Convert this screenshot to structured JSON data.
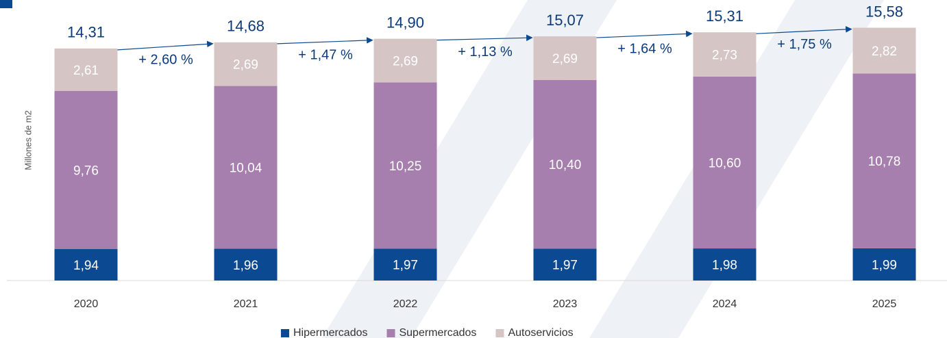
{
  "chart_data": {
    "type": "stacked_bar",
    "y_axis_label": "Millones de m2",
    "categories": [
      "2020",
      "2021",
      "2022",
      "2023",
      "2024",
      "2025"
    ],
    "series": [
      {
        "name": "Hipermercados",
        "color": "#0b4a92",
        "values": [
          1.94,
          1.96,
          1.97,
          1.97,
          1.98,
          1.99
        ],
        "value_labels": [
          "1,94",
          "1,96",
          "1,97",
          "1,97",
          "1,98",
          "1,99"
        ]
      },
      {
        "name": "Supermercados",
        "color": "#a77fae",
        "values": [
          9.76,
          10.04,
          10.25,
          10.4,
          10.6,
          10.78
        ],
        "value_labels": [
          "9,76",
          "10,04",
          "10,25",
          "10,40",
          "10,60",
          "10,78"
        ]
      },
      {
        "name": "Autoservicios",
        "color": "#d5c6c5",
        "values": [
          2.61,
          2.69,
          2.69,
          2.69,
          2.73,
          2.82
        ],
        "value_labels": [
          "2,61",
          "2,69",
          "2,69",
          "2,69",
          "2,73",
          "2,82"
        ]
      }
    ],
    "totals": {
      "values": [
        14.31,
        14.68,
        14.9,
        15.07,
        15.31,
        15.58
      ],
      "value_labels": [
        "14,31",
        "14,68",
        "14,90",
        "15,07",
        "15,31",
        "15,58"
      ]
    },
    "growth_labels": [
      "+ 2,60 %",
      "+ 1,47 %",
      "+ 1,13 %",
      "+ 1,64 %",
      "+ 1,75 %"
    ],
    "ylim": [
      0,
      17.3
    ],
    "legend": "bottom"
  }
}
